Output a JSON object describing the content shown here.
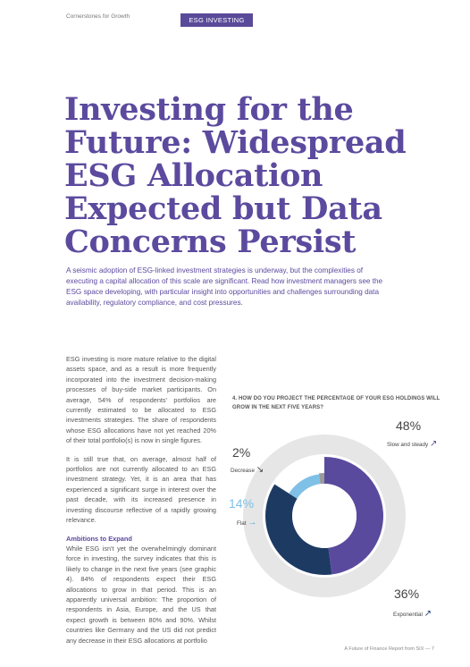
{
  "header": {
    "section": "Cornerstones for Growth",
    "tag": "ESG INVESTING"
  },
  "title_lines": [
    "Investing for the",
    "Future: Widespread",
    "ESG Allocation",
    "Expected but Data",
    "Concerns Persist"
  ],
  "lead": "A seismic adoption of ESG-linked investment strategies is underway, but the complexities of executing a capital allocation of this scale are significant. Read how investment managers see the ESG space developing, with particular insight into opportunities and challenges surrounding data availability, regulatory compliance, and cost pressures.",
  "body": {
    "p1": "ESG investing is more mature relative to the digital assets space, and as a result is more frequently incorporated into the investment decision-making processes of buy-side market participants. On average, 54% of respondents' portfolios are currently estimated to be allocated to ESG investments strategies. The share of respondents whose ESG allocations have not yet reached 20% of their total portfolio(s) is now in single figures.",
    "p2": "It is still true that, on average, almost half of portfolios are not currently allocated to an ESG investment strategy. Yet, it is an area that has experienced a significant surge in interest over the past decade, with its increased presence in investing discourse reflective of a rapidly growing relevance.",
    "subhead": "Ambitions to Expand",
    "p3": "While ESG isn't yet the overwhelmingly dominant force in investing, the survey indicates that this is likely to change in the next five years (see graphic 4). 84% of respondents expect their ESG allocations to grow in that period. This is an apparently universal ambition: The proportion of respondents in Asia, Europe, and the US that expect growth is between 80% and 90%. Whilst countries like Germany and the US did not predict any decrease in their ESG allocations at portfolio"
  },
  "chart_data": {
    "type": "pie",
    "title": "4. HOW DO YOU PROJECT THE PERCENTAGE OF YOUR ESG HOLDINGS WILL GROW IN THE NEXT FIVE YEARS?",
    "categories": [
      "Slow and steady",
      "Exponential",
      "Flat",
      "Decrease"
    ],
    "values": [
      48,
      36,
      14,
      2
    ],
    "value_labels": [
      "48%",
      "36%",
      "14%",
      "2%"
    ],
    "colors": [
      "#5a4a9e",
      "#1d3a63",
      "#7fc0e6",
      "#9a9a9a"
    ],
    "arrows": [
      "↗",
      "↗",
      "→",
      "↘"
    ]
  },
  "footer": "A Future of Finance Report from SIX — 7"
}
